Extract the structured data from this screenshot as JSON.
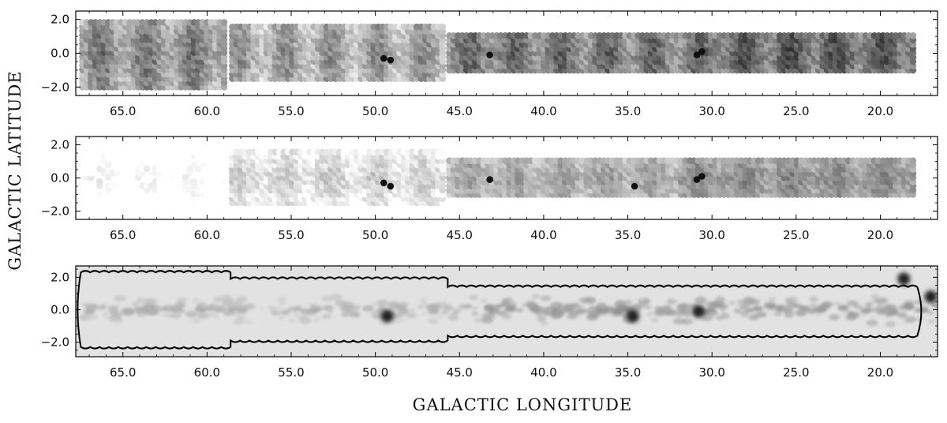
{
  "figure": {
    "xlabel": "GALACTIC LONGITUDE",
    "ylabel": "GALACTIC LATITUDE"
  },
  "chart_data": [
    {
      "type": "scatter",
      "panel": "top",
      "description_from_pixels": "grid of circular beam positions, grey level = intensity",
      "xlim": [
        67.8,
        16.6
      ],
      "ylim": [
        -2.5,
        2.5
      ],
      "xticks": [
        "65.0",
        "60.0",
        "55.0",
        "50.0",
        "45.0",
        "40.0",
        "35.0",
        "30.0",
        "25.0",
        "20.0"
      ],
      "yticks": [
        "2.0",
        "0.0",
        "−2.0"
      ],
      "coverage": [
        {
          "l_from": 67.4,
          "l_to": 58.8,
          "b_min": -2.0,
          "b_max": 2.0
        },
        {
          "l_from": 58.5,
          "l_to": 46.0,
          "b_min": -1.5,
          "b_max": 1.7
        },
        {
          "l_from": 45.6,
          "l_to": 18.0,
          "b_min": -1.0,
          "b_max": 1.1
        }
      ],
      "bright_spots": [
        {
          "l": 49.5,
          "b": -0.3
        },
        {
          "l": 49.1,
          "b": -0.4
        },
        {
          "l": 43.2,
          "b": -0.1
        },
        {
          "l": 30.9,
          "b": -0.1
        },
        {
          "l": 30.6,
          "b": 0.1
        }
      ]
    },
    {
      "type": "scatter",
      "panel": "middle",
      "description_from_pixels": "grid of circular beam positions, grey level = intensity",
      "xlim": [
        67.8,
        16.6
      ],
      "ylim": [
        -2.5,
        2.5
      ],
      "xticks": [
        "65.0",
        "60.0",
        "55.0",
        "50.0",
        "45.0",
        "40.0",
        "35.0",
        "30.0",
        "25.0",
        "20.0"
      ],
      "yticks": [
        "2.0",
        "0.0",
        "−2.0"
      ],
      "bright_spots": [
        {
          "l": 49.5,
          "b": -0.3
        },
        {
          "l": 49.1,
          "b": -0.5
        },
        {
          "l": 43.2,
          "b": -0.1
        },
        {
          "l": 34.6,
          "b": -0.5
        },
        {
          "l": 30.9,
          "b": -0.1
        },
        {
          "l": 30.6,
          "b": 0.1
        }
      ]
    },
    {
      "type": "heatmap",
      "panel": "bottom",
      "description_from_pixels": "greyscale continuum map with survey outline",
      "xlim": [
        67.8,
        16.6
      ],
      "ylim": [
        -2.9,
        2.7
      ],
      "xticks": [
        "65.0",
        "60.0",
        "55.0",
        "50.0",
        "45.0",
        "40.0",
        "35.0",
        "30.0",
        "25.0",
        "20.0"
      ],
      "yticks": [
        "2.0",
        "0.0",
        "−2.0"
      ],
      "bright_sources": [
        {
          "l": 49.3,
          "b": -0.4
        },
        {
          "l": 34.7,
          "b": -0.4
        },
        {
          "l": 30.8,
          "b": -0.1
        },
        {
          "l": 18.6,
          "b": 1.9
        },
        {
          "l": 17.0,
          "b": 0.8
        }
      ]
    }
  ]
}
